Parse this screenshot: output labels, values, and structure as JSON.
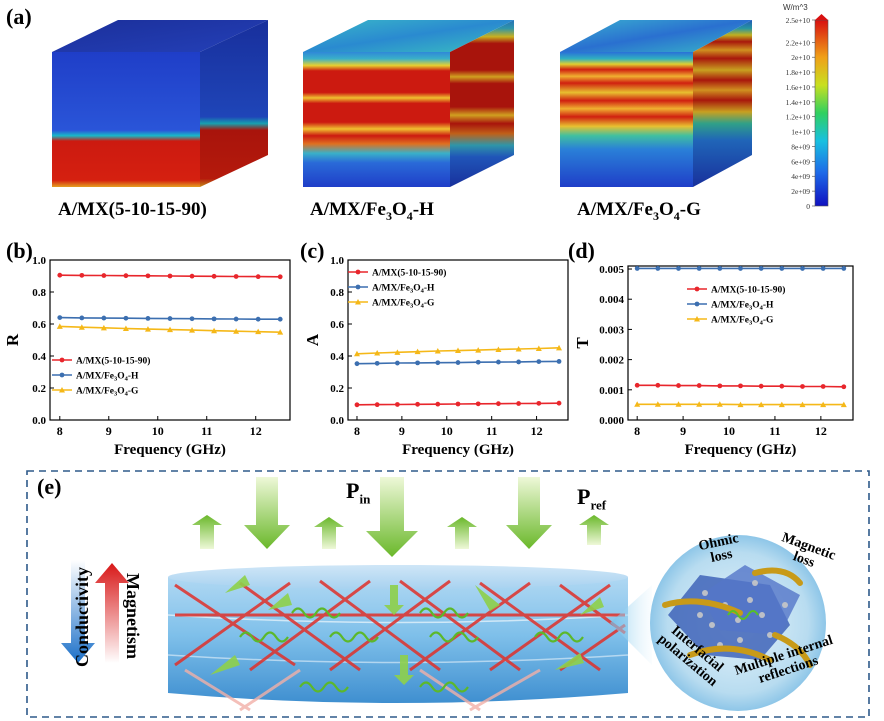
{
  "panel_labels": {
    "a": "(a)",
    "b": "(b)",
    "c": "(c)",
    "d": "(d)",
    "e": "(e)"
  },
  "cubes": [
    {
      "caption": "A/MX(5-10-15-90)"
    },
    {
      "caption_base": "A/MX/Fe",
      "caption_sub": "3",
      "caption_mid": "O",
      "caption_sub2": "4",
      "caption_end": "-H"
    },
    {
      "caption_base": "A/MX/Fe",
      "caption_sub": "3",
      "caption_mid": "O",
      "caption_sub2": "4",
      "caption_end": "-G"
    }
  ],
  "colorbar": {
    "unit": "W/m^3",
    "ticks": [
      "2.5e+10",
      "2.2e+10",
      "2e+10",
      "1.8e+10",
      "1.6e+10",
      "1.4e+10",
      "1.2e+10",
      "1e+10",
      "8e+09",
      "6e+09",
      "4e+09",
      "2e+09",
      "0"
    ],
    "tick_values": [
      25000000000.0,
      22000000000.0,
      20000000000.0,
      18000000000.0,
      16000000000.0,
      14000000000.0,
      12000000000.0,
      10000000000.0,
      8000000000.0,
      6000000000.0,
      4000000000.0,
      2000000000.0,
      0
    ],
    "max": 25000000000.0
  },
  "colors": {
    "red": "#e8262c",
    "blue": "#3c6fb0",
    "yellow": "#f5b818",
    "cube_blue": "#1f3ec8",
    "cube_red": "#cc1a10"
  },
  "chart_data": [
    {
      "type": "line",
      "panel": "(b)",
      "xlabel": "Frequency (GHz)",
      "ylabel": "R",
      "xlim": [
        7.8,
        12.7
      ],
      "ylim": [
        0.0,
        1.0
      ],
      "xticks": [
        8,
        9,
        10,
        11,
        12
      ],
      "yticks": [
        0.0,
        0.2,
        0.4,
        0.6,
        0.8,
        1.0
      ],
      "ytick_labels": [
        "0.0",
        "0.2",
        "0.4",
        "0.6",
        "0.8",
        "1.0"
      ],
      "x": [
        8.0,
        8.45,
        8.9,
        9.35,
        9.8,
        10.25,
        10.7,
        11.15,
        11.6,
        12.05,
        12.5
      ],
      "legend_placement": "bottom-left",
      "series": [
        {
          "name": "A/MX(5-10-15-90)",
          "color": "red",
          "marker": "circle",
          "values": [
            0.905,
            0.904,
            0.903,
            0.902,
            0.901,
            0.9,
            0.899,
            0.898,
            0.897,
            0.896,
            0.895
          ]
        },
        {
          "name": "A/MX/Fe3O4-H",
          "color": "blue",
          "marker": "circle",
          "values": [
            0.64,
            0.638,
            0.637,
            0.636,
            0.635,
            0.634,
            0.633,
            0.632,
            0.631,
            0.63,
            0.63
          ]
        },
        {
          "name": "A/MX/Fe3O4-G",
          "color": "yellow",
          "marker": "triangle",
          "values": [
            0.585,
            0.58,
            0.576,
            0.572,
            0.568,
            0.565,
            0.562,
            0.558,
            0.555,
            0.552,
            0.549
          ]
        }
      ]
    },
    {
      "type": "line",
      "panel": "(c)",
      "xlabel": "Frequency (GHz)",
      "ylabel": "A",
      "xlim": [
        7.8,
        12.7
      ],
      "ylim": [
        0.0,
        1.0
      ],
      "xticks": [
        8,
        9,
        10,
        11,
        12
      ],
      "yticks": [
        0.0,
        0.2,
        0.4,
        0.6,
        0.8,
        1.0
      ],
      "ytick_labels": [
        "0.0",
        "0.2",
        "0.4",
        "0.6",
        "0.8",
        "1.0"
      ],
      "x": [
        8.0,
        8.45,
        8.9,
        9.35,
        9.8,
        10.25,
        10.7,
        11.15,
        11.6,
        12.05,
        12.5
      ],
      "legend_placement": "top-left",
      "series": [
        {
          "name": "A/MX(5-10-15-90)",
          "color": "red",
          "marker": "circle",
          "values": [
            0.095,
            0.096,
            0.097,
            0.098,
            0.099,
            0.1,
            0.101,
            0.102,
            0.103,
            0.104,
            0.105
          ]
        },
        {
          "name": "A/MX/Fe3O4-H",
          "color": "blue",
          "marker": "circle",
          "values": [
            0.352,
            0.354,
            0.356,
            0.357,
            0.358,
            0.359,
            0.361,
            0.362,
            0.363,
            0.365,
            0.366
          ]
        },
        {
          "name": "A/MX/Fe3O4-G",
          "color": "yellow",
          "marker": "triangle",
          "values": [
            0.414,
            0.419,
            0.423,
            0.427,
            0.431,
            0.434,
            0.437,
            0.441,
            0.444,
            0.447,
            0.451
          ]
        }
      ]
    },
    {
      "type": "line",
      "panel": "(d)",
      "xlabel": "Frequency (GHz)",
      "ylabel": "T",
      "xlim": [
        7.8,
        12.7
      ],
      "ylim": [
        0.0,
        0.0051
      ],
      "xticks": [
        8,
        9,
        10,
        11,
        12
      ],
      "yticks": [
        0.0,
        0.001,
        0.002,
        0.003,
        0.004,
        0.005
      ],
      "ytick_labels": [
        "0.000",
        "0.001",
        "0.002",
        "0.003",
        "0.004",
        "0.005"
      ],
      "x": [
        8.0,
        8.45,
        8.9,
        9.35,
        9.8,
        10.25,
        10.7,
        11.15,
        11.6,
        12.05,
        12.5
      ],
      "legend_placement": "middle-right",
      "series": [
        {
          "name": "A/MX(5-10-15-90)",
          "color": "red",
          "marker": "circle",
          "values": [
            0.00115,
            0.00115,
            0.00114,
            0.00114,
            0.00113,
            0.00113,
            0.00112,
            0.00112,
            0.00111,
            0.00111,
            0.0011
          ]
        },
        {
          "name": "A/MX/Fe3O4-H",
          "color": "blue",
          "marker": "circle",
          "values": [
            0.00502,
            0.00502,
            0.00502,
            0.00502,
            0.00502,
            0.00502,
            0.00502,
            0.00502,
            0.00502,
            0.00502,
            0.00502
          ]
        },
        {
          "name": "A/MX/Fe3O4-G",
          "color": "yellow",
          "marker": "triangle",
          "values": [
            0.00052,
            0.00052,
            0.00052,
            0.00052,
            0.00052,
            0.00051,
            0.00051,
            0.00051,
            0.00051,
            0.00051,
            0.00051
          ]
        }
      ]
    }
  ],
  "schematic": {
    "p_in_base": "P",
    "p_in_sub": "in",
    "p_ref_base": "P",
    "p_ref_sub": "ref",
    "conductivity": "Conductivity",
    "magnetism": "Magnetism",
    "ohmic": "Ohmic",
    "loss": "loss",
    "magnetic": "Magnetic",
    "magnetic_loss": "loss",
    "interfacial": "Interfacial",
    "polarization": "polarization",
    "multiple_internal": "Multiple internal",
    "reflections": "reflections"
  }
}
